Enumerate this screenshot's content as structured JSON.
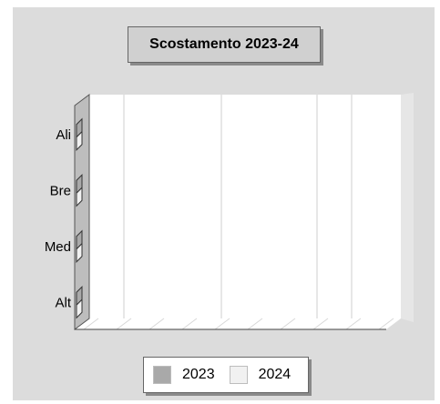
{
  "title": "Scostamento 2023-24",
  "chart_data": {
    "type": "bar",
    "orientation": "horizontal",
    "style": "3d",
    "title": "Scostamento 2023-24",
    "categories": [
      "Alt",
      "Med",
      "Bre",
      "Ali"
    ],
    "series": [
      {
        "name": "2023",
        "values": [
          0,
          0,
          0,
          0
        ]
      },
      {
        "name": "2024",
        "values": [
          0,
          0,
          0,
          0
        ]
      }
    ],
    "grid": "vertical",
    "legend": "bottom"
  },
  "colors": {
    "background": "#dcdcdc",
    "plot_area": "#ffffff",
    "series_2023": "#a9a9a9",
    "series_2024": "#f1f1f1"
  }
}
